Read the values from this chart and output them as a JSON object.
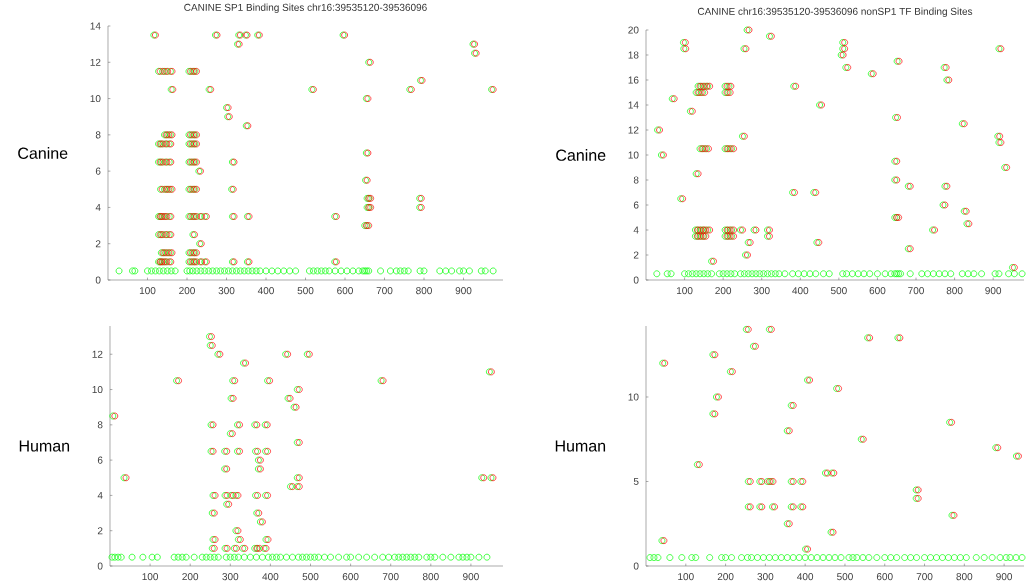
{
  "chart_data": [
    {
      "type": "scatter",
      "title": "CANINE SP1 Binding Sites chr16:39535120-39536096",
      "ylabel": "Canine",
      "marker": "circle",
      "xlim": [
        0,
        1000
      ],
      "ylim": [
        0,
        14
      ],
      "xticks": [
        100,
        200,
        300,
        400,
        500,
        600,
        700,
        800,
        900
      ],
      "yticks": [
        0,
        2,
        4,
        6,
        8,
        10,
        12,
        14
      ],
      "series": [
        {
          "color": "#00ff00",
          "x": [
            28,
            62,
            68,
            100,
            110,
            120,
            130,
            140,
            150,
            160,
            170,
            200,
            207,
            215,
            225,
            235,
            245,
            255,
            265,
            275,
            285,
            295,
            305,
            315,
            325,
            335,
            345,
            355,
            365,
            375,
            385,
            400,
            415,
            430,
            445,
            460,
            475,
            510,
            520,
            530,
            540,
            550,
            560,
            575,
            590,
            605,
            620,
            635,
            645,
            650,
            655,
            660,
            690,
            715,
            730,
            740,
            750,
            760,
            790,
            800,
            840,
            855,
            870,
            890,
            900,
            915,
            945,
            955,
            975
          ],
          "values": [
            0.5,
            0.5,
            0.5,
            0.5,
            0.5,
            0.5,
            0.5,
            0.5,
            0.5,
            0.5,
            0.5,
            0.5,
            0.5,
            0.5,
            0.5,
            0.5,
            0.5,
            0.5,
            0.5,
            0.5,
            0.5,
            0.5,
            0.5,
            0.5,
            0.5,
            0.5,
            0.5,
            0.5,
            0.5,
            0.5,
            0.5,
            0.5,
            0.5,
            0.5,
            0.5,
            0.5,
            0.5,
            0.5,
            0.5,
            0.5,
            0.5,
            0.5,
            0.5,
            0.5,
            0.5,
            0.5,
            0.5,
            0.5,
            0.5,
            0.5,
            0.5,
            0.5,
            0.5,
            0.5,
            0.5,
            0.5,
            0.5,
            0.5,
            0.5,
            0.5,
            0.5,
            0.5,
            0.5,
            0.5,
            0.5,
            0.5,
            0.5,
            0.5,
            0.5
          ]
        },
        {
          "color": "#00ff00",
          "x": [
            116,
            272,
            331,
            348,
            379,
            595,
            328,
            924,
            928,
            660,
            128,
            138,
            147,
            158,
            205,
            213,
            220,
            791,
            160,
            256,
            516,
            764,
            971,
            654,
            300,
            303,
            350,
            143,
            150,
            158,
            205,
            213,
            220,
            128,
            135,
            145,
            155,
            205,
            213,
            220,
            654,
            128,
            135,
            145,
            155,
            205,
            213,
            220,
            315,
            230,
            652,
            133,
            143,
            150,
            158,
            205,
            213,
            220,
            313,
            656,
            661,
            789,
            656,
            661,
            789,
            128,
            132,
            138,
            145,
            155,
            205,
            213,
            220,
            233,
            245,
            315,
            353,
            574,
            650,
            656,
            128,
            135,
            145,
            155,
            215,
            232,
            135,
            142,
            150,
            158,
            205,
            213,
            220,
            128,
            132,
            138,
            145,
            155,
            205,
            213,
            220,
            233,
            245,
            315,
            353,
            574
          ],
          "values": [
            13.5,
            13.5,
            13.5,
            13.5,
            13.5,
            13.5,
            13,
            13,
            12.5,
            12,
            11.5,
            11.5,
            11.5,
            11.5,
            11.5,
            11.5,
            11.5,
            11,
            10.5,
            10.5,
            10.5,
            10.5,
            10.5,
            10,
            9.5,
            9,
            8.5,
            8,
            8,
            8,
            8,
            8,
            8,
            7.5,
            7.5,
            7.5,
            7.5,
            7.5,
            7.5,
            7.5,
            7,
            6.5,
            6.5,
            6.5,
            6.5,
            6.5,
            6.5,
            6.5,
            6.5,
            6,
            5.5,
            5,
            5,
            5,
            5,
            5,
            5,
            5,
            5,
            4.5,
            4.5,
            4.5,
            4,
            4,
            4,
            3.5,
            3.5,
            3.5,
            3.5,
            3.5,
            3.5,
            3.5,
            3.5,
            3.5,
            3.5,
            3.5,
            3.5,
            3.5,
            3,
            3,
            2.5,
            2.5,
            2.5,
            2.5,
            2.5,
            2,
            1.5,
            1.5,
            1.5,
            1.5,
            1.5,
            1.5,
            1.5,
            1,
            1,
            1,
            1,
            1,
            1,
            1,
            1,
            1,
            1,
            1,
            1,
            1
          ]
        },
        {
          "color": "#ff0000",
          "x": [
            120,
            276,
            335,
            352,
            383,
            599,
            332,
            928,
            932,
            664,
            132,
            142,
            151,
            162,
            209,
            217,
            224,
            795,
            164,
            260,
            520,
            768,
            975,
            658,
            304,
            307,
            354,
            147,
            154,
            162,
            209,
            217,
            224,
            132,
            139,
            149,
            159,
            209,
            217,
            224,
            658,
            132,
            139,
            149,
            159,
            209,
            217,
            224,
            319,
            234,
            656,
            137,
            147,
            154,
            162,
            209,
            217,
            224,
            317,
            660,
            665,
            793,
            660,
            665,
            793,
            132,
            136,
            142,
            149,
            159,
            209,
            217,
            224,
            237,
            249,
            319,
            357,
            578,
            654,
            660,
            132,
            139,
            149,
            159,
            219,
            236,
            139,
            146,
            154,
            162,
            209,
            217,
            224,
            132,
            136,
            142,
            149,
            159,
            209,
            217,
            224,
            237,
            249,
            319,
            357,
            578
          ],
          "values": [
            13.5,
            13.5,
            13.5,
            13.5,
            13.5,
            13.5,
            13,
            13,
            12.5,
            12,
            11.5,
            11.5,
            11.5,
            11.5,
            11.5,
            11.5,
            11.5,
            11,
            10.5,
            10.5,
            10.5,
            10.5,
            10.5,
            10,
            9.5,
            9,
            8.5,
            8,
            8,
            8,
            8,
            8,
            8,
            7.5,
            7.5,
            7.5,
            7.5,
            7.5,
            7.5,
            7.5,
            7,
            6.5,
            6.5,
            6.5,
            6.5,
            6.5,
            6.5,
            6.5,
            6.5,
            6,
            5.5,
            5,
            5,
            5,
            5,
            5,
            5,
            5,
            5,
            4.5,
            4.5,
            4.5,
            4,
            4,
            4,
            3.5,
            3.5,
            3.5,
            3.5,
            3.5,
            3.5,
            3.5,
            3.5,
            3.5,
            3.5,
            3.5,
            3.5,
            3.5,
            3,
            3,
            2.5,
            2.5,
            2.5,
            2.5,
            2.5,
            2,
            1.5,
            1.5,
            1.5,
            1.5,
            1.5,
            1.5,
            1.5,
            1,
            1,
            1,
            1,
            1,
            1,
            1,
            1,
            1,
            1,
            1,
            1,
            1
          ]
        }
      ]
    },
    {
      "type": "scatter",
      "title": "CANINE chr16:39535120-39536096 nonSP1 TF Binding Sites",
      "ylabel": "Canine",
      "marker": "circle",
      "xlim": [
        0,
        980
      ],
      "ylim": [
        0,
        20
      ],
      "xticks": [
        100,
        200,
        300,
        400,
        500,
        600,
        700,
        800,
        900
      ],
      "yticks": [
        0,
        2,
        4,
        6,
        8,
        10,
        12,
        14,
        16,
        18,
        20
      ],
      "series": [
        {
          "color": "#00ff00",
          "x": [
            28,
            55,
            65,
            100,
            110,
            120,
            130,
            140,
            150,
            160,
            170,
            190,
            200,
            210,
            220,
            230,
            245,
            255,
            265,
            275,
            285,
            295,
            305,
            315,
            325,
            335,
            345,
            360,
            380,
            395,
            410,
            425,
            440,
            460,
            475,
            510,
            520,
            535,
            550,
            565,
            580,
            600,
            620,
            635,
            645,
            650,
            655,
            660,
            685,
            715,
            730,
            745,
            760,
            775,
            790,
            820,
            835,
            850,
            870,
            905,
            915,
            940,
            955,
            975
          ],
          "values": [
            0.5,
            0.5,
            0.5,
            0.5,
            0.5,
            0.5,
            0.5,
            0.5,
            0.5,
            0.5,
            0.5,
            0.5,
            0.5,
            0.5,
            0.5,
            0.5,
            0.5,
            0.5,
            0.5,
            0.5,
            0.5,
            0.5,
            0.5,
            0.5,
            0.5,
            0.5,
            0.5,
            0.5,
            0.5,
            0.5,
            0.5,
            0.5,
            0.5,
            0.5,
            0.5,
            0.5,
            0.5,
            0.5,
            0.5,
            0.5,
            0.5,
            0.5,
            0.5,
            0.5,
            0.5,
            0.5,
            0.5,
            0.5,
            0.5,
            0.5,
            0.5,
            0.5,
            0.5,
            0.5,
            0.5,
            0.5,
            0.5,
            0.5,
            0.5,
            0.5,
            0.5,
            0.5,
            0.5,
            0.5
          ]
        },
        {
          "color": "#00ff00",
          "x": [
            262,
            320,
            97,
            510,
            98,
            254,
            510,
            915,
            506,
            651,
            518,
            773,
            584,
            780,
            135,
            143,
            152,
            160,
            205,
            215,
            383,
            130,
            138,
            147,
            205,
            213,
            68,
            450,
            115,
            647,
            820,
            30,
            250,
            912,
            915,
            140,
            148,
            157,
            205,
            213,
            222,
            40,
            645,
            930,
            130,
            645,
            680,
            775,
            380,
            435,
            90,
            770,
            825,
            645,
            650,
            832,
            128,
            135,
            143,
            150,
            160,
            205,
            213,
            222,
            245,
            280,
            315,
            743,
            128,
            135,
            143,
            150,
            205,
            213,
            222,
            315,
            265,
            443,
            680,
            258,
            170,
            950
          ],
          "values": [
            20,
            19.5,
            19,
            19,
            18.5,
            18.5,
            18.5,
            18.5,
            18,
            17.5,
            17,
            17,
            16.5,
            16,
            15.5,
            15.5,
            15.5,
            15.5,
            15.5,
            15.5,
            15.5,
            15,
            15,
            15,
            15,
            15,
            14.5,
            14,
            13.5,
            13,
            12.5,
            12,
            11.5,
            11.5,
            11,
            10.5,
            10.5,
            10.5,
            10.5,
            10.5,
            10.5,
            10,
            9.5,
            9,
            8.5,
            8,
            7.5,
            7.5,
            7,
            7,
            6.5,
            6,
            5.5,
            5,
            5,
            4.5,
            4,
            4,
            4,
            4,
            4,
            4,
            4,
            4,
            4,
            4,
            4,
            4,
            3.5,
            3.5,
            3.5,
            3.5,
            3.5,
            3.5,
            3.5,
            3.5,
            3,
            3,
            2.5,
            2,
            1.5,
            1
          ]
        },
        {
          "color": "#ff0000",
          "x": [
            267,
            325,
            102,
            515,
            103,
            259,
            515,
            920,
            511,
            656,
            523,
            778,
            589,
            785,
            140,
            148,
            157,
            165,
            210,
            220,
            388,
            135,
            143,
            152,
            210,
            218,
            73,
            455,
            120,
            652,
            825,
            35,
            255,
            917,
            920,
            145,
            153,
            162,
            210,
            218,
            227,
            45,
            650,
            935,
            135,
            650,
            685,
            780,
            385,
            440,
            95,
            775,
            830,
            650,
            655,
            837,
            133,
            140,
            148,
            155,
            165,
            210,
            218,
            227,
            250,
            285,
            320,
            748,
            133,
            140,
            148,
            155,
            210,
            218,
            227,
            320,
            270,
            448,
            685,
            263,
            175,
            955
          ],
          "values": [
            20,
            19.5,
            19,
            19,
            18.5,
            18.5,
            18.5,
            18.5,
            18,
            17.5,
            17,
            17,
            16.5,
            16,
            15.5,
            15.5,
            15.5,
            15.5,
            15.5,
            15.5,
            15.5,
            15,
            15,
            15,
            15,
            15,
            14.5,
            14,
            13.5,
            13,
            12.5,
            12,
            11.5,
            11.5,
            11,
            10.5,
            10.5,
            10.5,
            10.5,
            10.5,
            10.5,
            10,
            9.5,
            9,
            8.5,
            8,
            7.5,
            7.5,
            7,
            7,
            6.5,
            6,
            5.5,
            5,
            5,
            4.5,
            4,
            4,
            4,
            4,
            4,
            4,
            4,
            4,
            4,
            4,
            4,
            4,
            3.5,
            3.5,
            3.5,
            3.5,
            3.5,
            3.5,
            3.5,
            3.5,
            3,
            3,
            2.5,
            2,
            1.5,
            1
          ]
        }
      ]
    },
    {
      "type": "scatter",
      "ylabel": "Human",
      "marker": "circle",
      "xlim": [
        0,
        980
      ],
      "ylim": [
        0,
        13.6
      ],
      "xticks": [
        100,
        200,
        300,
        400,
        500,
        600,
        700,
        800,
        900
      ],
      "yticks": [
        0,
        2,
        4,
        6,
        8,
        10,
        12
      ],
      "series": [
        {
          "color": "#00ff00",
          "x": [
            5,
            12,
            20,
            28,
            55,
            82,
            105,
            118,
            160,
            170,
            180,
            190,
            210,
            230,
            240,
            250,
            260,
            270,
            290,
            300,
            310,
            320,
            335,
            350,
            365,
            380,
            395,
            405,
            415,
            425,
            440,
            455,
            470,
            480,
            490,
            500,
            510,
            520,
            535,
            550,
            570,
            590,
            600,
            620,
            640,
            660,
            680,
            695,
            710,
            720,
            730,
            740,
            750,
            760,
            770,
            790,
            800,
            810,
            830,
            850,
            870,
            880,
            890,
            900,
            920,
            940
          ],
          "values": [
            0.5,
            0.5,
            0.5,
            0.5,
            0.5,
            0.5,
            0.5,
            0.5,
            0.5,
            0.5,
            0.5,
            0.5,
            0.5,
            0.5,
            0.5,
            0.5,
            0.5,
            0.5,
            0.5,
            0.5,
            0.5,
            0.5,
            0.5,
            0.5,
            0.5,
            0.5,
            0.5,
            0.5,
            0.5,
            0.5,
            0.5,
            0.5,
            0.5,
            0.5,
            0.5,
            0.5,
            0.5,
            0.5,
            0.5,
            0.5,
            0.5,
            0.5,
            0.5,
            0.5,
            0.5,
            0.5,
            0.5,
            0.5,
            0.5,
            0.5,
            0.5,
            0.5,
            0.5,
            0.5,
            0.5,
            0.5,
            0.5,
            0.5,
            0.5,
            0.5,
            0.5,
            0.5,
            0.5,
            0.5,
            0.5,
            0.5
          ]
        },
        {
          "color": "#00ff00",
          "x": [
            248,
            250,
            269,
            438,
            492,
            333,
            946,
            166,
            306,
            393,
            676,
            467,
            302,
            444,
            459,
            7,
            252,
            318,
            361,
            387,
            300,
            467,
            252,
            286,
            318,
            363,
            388,
            370,
            286,
            370,
            35,
            467,
            927,
            950,
            450,
            467,
            257,
            287,
            302,
            314,
            363,
            388,
            291,
            255,
            366,
            375,
            314,
            257,
            320,
            389,
            255,
            287,
            310,
            331,
            361,
            368,
            384
          ],
          "values": [
            13,
            12.5,
            12,
            12,
            12,
            11.5,
            11,
            10.5,
            10.5,
            10.5,
            10.5,
            10,
            9.5,
            9.5,
            9,
            8.5,
            8,
            8,
            8,
            8,
            7.5,
            7,
            6.5,
            6.5,
            6.5,
            6.5,
            6.5,
            6,
            5.5,
            5.5,
            5,
            5,
            5,
            5,
            4.5,
            4.5,
            4,
            4,
            4,
            4,
            4,
            4,
            3.5,
            3,
            3,
            2.5,
            2,
            1.5,
            1.5,
            1.5,
            1,
            1,
            1,
            1,
            1,
            1,
            1
          ]
        },
        {
          "color": "#ff0000",
          "x": [
            253,
            255,
            274,
            443,
            497,
            338,
            951,
            171,
            311,
            398,
            681,
            472,
            307,
            449,
            464,
            12,
            257,
            323,
            366,
            392,
            305,
            472,
            257,
            291,
            323,
            368,
            393,
            375,
            291,
            375,
            40,
            472,
            932,
            955,
            455,
            472,
            262,
            292,
            307,
            319,
            368,
            393,
            296,
            260,
            371,
            380,
            319,
            262,
            325,
            394,
            260,
            292,
            315,
            336,
            366,
            373,
            389
          ],
          "values": [
            13,
            12.5,
            12,
            12,
            12,
            11.5,
            11,
            10.5,
            10.5,
            10.5,
            10.5,
            10,
            9.5,
            9.5,
            9,
            8.5,
            8,
            8,
            8,
            8,
            7.5,
            7,
            6.5,
            6.5,
            6.5,
            6.5,
            6.5,
            6,
            5.5,
            5.5,
            5,
            5,
            5,
            5,
            4.5,
            4.5,
            4,
            4,
            4,
            4,
            4,
            4,
            3.5,
            3,
            3,
            2.5,
            2,
            1.5,
            1.5,
            1.5,
            1,
            1,
            1,
            1,
            1,
            1,
            1
          ]
        }
      ]
    },
    {
      "type": "scatter",
      "ylabel": "Human",
      "marker": "circle",
      "xlim": [
        0,
        950
      ],
      "ylim": [
        0,
        14.2
      ],
      "xticks": [
        100,
        200,
        300,
        400,
        500,
        600,
        700,
        800,
        900
      ],
      "yticks": [
        0,
        5,
        10
      ],
      "series": [
        {
          "color": "#00ff00",
          "x": [
            10,
            20,
            30,
            60,
            90,
            115,
            125,
            160,
            190,
            200,
            215,
            240,
            255,
            265,
            280,
            295,
            310,
            325,
            340,
            355,
            370,
            385,
            400,
            415,
            430,
            445,
            460,
            475,
            490,
            510,
            520,
            530,
            545,
            560,
            580,
            600,
            615,
            630,
            650,
            665,
            680,
            700,
            715,
            730,
            745,
            760,
            775,
            790,
            805,
            830,
            850,
            870,
            890,
            905,
            915,
            930,
            945
          ],
          "values": [
            0.5,
            0.5,
            0.5,
            0.5,
            0.5,
            0.5,
            0.5,
            0.5,
            0.5,
            0.5,
            0.5,
            0.5,
            0.5,
            0.5,
            0.5,
            0.5,
            0.5,
            0.5,
            0.5,
            0.5,
            0.5,
            0.5,
            0.5,
            0.5,
            0.5,
            0.5,
            0.5,
            0.5,
            0.5,
            0.5,
            0.5,
            0.5,
            0.5,
            0.5,
            0.5,
            0.5,
            0.5,
            0.5,
            0.5,
            0.5,
            0.5,
            0.5,
            0.5,
            0.5,
            0.5,
            0.5,
            0.5,
            0.5,
            0.5,
            0.5,
            0.5,
            0.5,
            0.5,
            0.5,
            0.5,
            0.5,
            0.5
          ]
        },
        {
          "color": "#00ff00",
          "x": [
            252,
            310,
            557,
            633,
            270,
            168,
            42,
            212,
            406,
            479,
            177,
            365,
            168,
            763,
            355,
            541,
            879,
            931,
            129,
            451,
            467,
            257,
            286,
            305,
            314,
            365,
            389,
            679,
            679,
            257,
            286,
            318,
            365,
            389,
            769,
            355,
            465,
            40,
            401
          ],
          "values": [
            14,
            14,
            13.5,
            13.5,
            13,
            12.5,
            12,
            11.5,
            11,
            10.5,
            10,
            9.5,
            9,
            8.5,
            8,
            7.5,
            7,
            6.5,
            6,
            5.5,
            5.5,
            5,
            5,
            5,
            5,
            5,
            5,
            4.5,
            4,
            3.5,
            3.5,
            3.5,
            3.5,
            3.5,
            3,
            2.5,
            2,
            1.5,
            1
          ]
        },
        {
          "color": "#ff0000",
          "x": [
            257,
            315,
            562,
            638,
            275,
            173,
            47,
            217,
            411,
            484,
            182,
            370,
            173,
            768,
            360,
            546,
            884,
            936,
            134,
            456,
            472,
            262,
            291,
            310,
            319,
            370,
            394,
            684,
            684,
            262,
            291,
            323,
            370,
            394,
            774,
            360,
            470,
            45,
            406
          ],
          "values": [
            14,
            14,
            13.5,
            13.5,
            13,
            12.5,
            12,
            11.5,
            11,
            10.5,
            10,
            9.5,
            9,
            8.5,
            8,
            7.5,
            7,
            6.5,
            6,
            5.5,
            5.5,
            5,
            5,
            5,
            5,
            5,
            5,
            4.5,
            4,
            3.5,
            3.5,
            3.5,
            3.5,
            3.5,
            3,
            2.5,
            2,
            1.5,
            1
          ]
        }
      ]
    }
  ]
}
